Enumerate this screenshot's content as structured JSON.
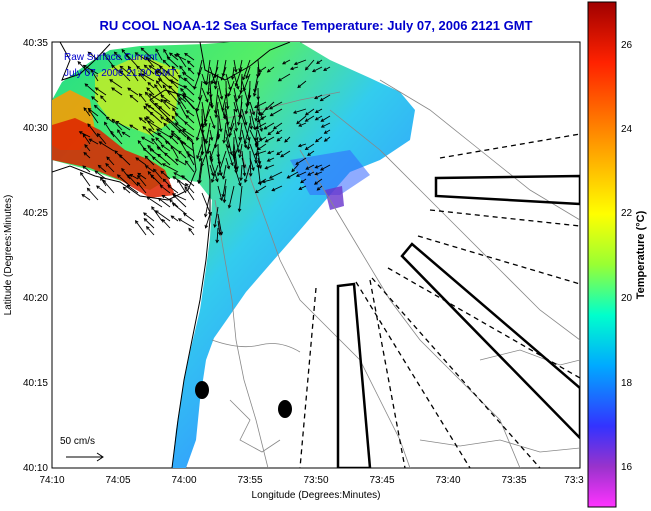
{
  "title": "RU COOL  NOAA-12  Sea Surface Temperature:  July 07, 2006 2121 GMT",
  "overlay": {
    "line1": "Raw Surface Current",
    "line2": "July 07, 2006 21:00 GMT"
  },
  "axes": {
    "xlabel": "Longitude (Degrees:Minutes)",
    "ylabel": "Latitude (Degrees:Minutes)",
    "xticks": [
      "74:10",
      "74:05",
      "74:00",
      "73:55",
      "73:50",
      "73:45",
      "73:40",
      "73:35",
      "73:3"
    ],
    "yticks": [
      "40:35",
      "40:30",
      "40:25",
      "40:20",
      "40:15",
      "40:10"
    ]
  },
  "scale": {
    "label": "50 cm/s"
  },
  "colorbar": {
    "label": "Temperature (°C)",
    "ticks": [
      "26",
      "24",
      "22",
      "20",
      "18",
      "16"
    ],
    "colors": [
      "#cc0000",
      "#ff3300",
      "#ff9900",
      "#ffff00",
      "#66ff33",
      "#00ffcc",
      "#00aaff",
      "#3333ff",
      "#9933cc",
      "#ff33ff"
    ]
  }
}
